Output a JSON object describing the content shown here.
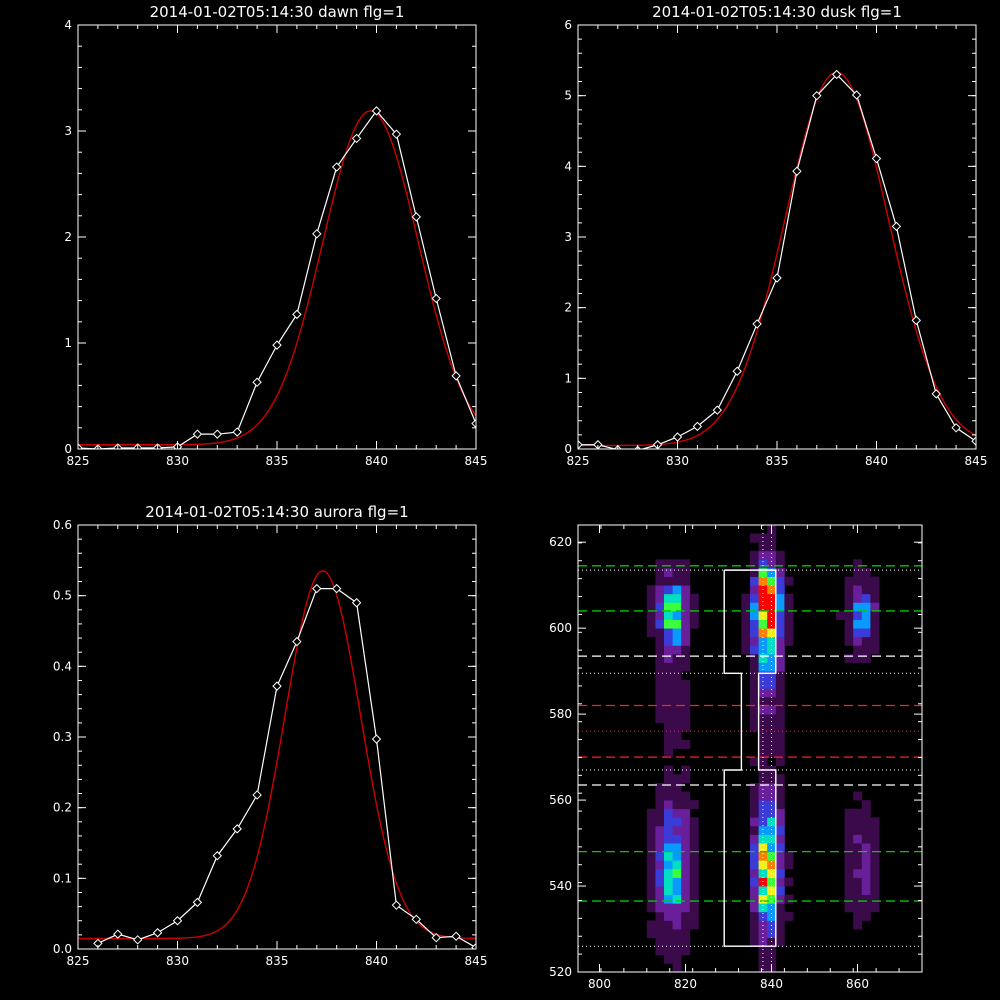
{
  "chart_data": [
    {
      "id": "dawn",
      "type": "line",
      "title": "2014-01-02T05:14:30 dawn flg=1",
      "xlim": [
        825,
        845
      ],
      "ylim": [
        0,
        4
      ],
      "xticks": [
        "825",
        "830",
        "835",
        "840",
        "845"
      ],
      "yticks": [
        "0",
        "1",
        "2",
        "3",
        "4"
      ],
      "series": [
        {
          "color": "#ffffff",
          "markers": "diamond",
          "x": [
            825,
            826,
            827,
            828,
            829,
            830,
            831,
            832,
            833,
            834,
            835,
            836,
            837,
            838,
            839,
            840,
            841,
            842,
            843,
            844,
            845
          ],
          "y": [
            0.01,
            0.0,
            0.01,
            0.01,
            0.01,
            0.02,
            0.14,
            0.14,
            0.16,
            0.63,
            0.98,
            1.27,
            2.03,
            2.66,
            2.93,
            3.19,
            2.97,
            2.19,
            1.42,
            0.69,
            0.24
          ]
        },
        {
          "color": "#cc0000",
          "fit": "gaussian",
          "center": 839.7,
          "amplitude": 3.15,
          "sigma": 2.4,
          "offset": 0.04
        }
      ]
    },
    {
      "id": "dusk",
      "type": "line",
      "title": "2014-01-02T05:14:30 dusk flg=1",
      "xlim": [
        825,
        845
      ],
      "ylim": [
        0,
        6
      ],
      "xticks": [
        "825",
        "830",
        "835",
        "840",
        "845"
      ],
      "yticks": [
        "0",
        "1",
        "2",
        "3",
        "4",
        "5",
        "6"
      ],
      "series": [
        {
          "color": "#ffffff",
          "markers": "diamond",
          "x": [
            825,
            826,
            827,
            828,
            829,
            830,
            831,
            832,
            833,
            834,
            835,
            836,
            837,
            838,
            839,
            840,
            841,
            842,
            843,
            844,
            845
          ],
          "y": [
            0.06,
            0.06,
            -0.01,
            -0.02,
            0.06,
            0.17,
            0.32,
            0.55,
            1.1,
            1.77,
            2.42,
            3.93,
            5.0,
            5.3,
            5.01,
            4.11,
            3.15,
            1.82,
            0.78,
            0.3,
            0.11
          ]
        },
        {
          "color": "#cc0000",
          "fit": "gaussian",
          "center": 838.0,
          "amplitude": 5.28,
          "sigma": 2.6,
          "offset": 0.05
        }
      ]
    },
    {
      "id": "aurora",
      "type": "line",
      "title": "2014-01-02T05:14:30 aurora flg=1",
      "xlim": [
        825,
        845
      ],
      "ylim": [
        0,
        0.6
      ],
      "xticks": [
        "825",
        "830",
        "835",
        "840",
        "845"
      ],
      "yticks": [
        "0.0",
        "0.1",
        "0.2",
        "0.3",
        "0.4",
        "0.5",
        "0.6"
      ],
      "series": [
        {
          "color": "#ffffff",
          "markers": "diamond",
          "x": [
            826,
            827,
            828,
            829,
            830,
            831,
            832,
            833,
            834,
            835,
            836,
            837,
            838,
            839,
            840,
            841,
            842,
            843,
            844,
            845
          ],
          "y": [
            0.008,
            0.021,
            0.013,
            0.023,
            0.04,
            0.066,
            0.132,
            0.17,
            0.218,
            0.372,
            0.435,
            0.51,
            0.51,
            0.49,
            0.297,
            0.062,
            0.042,
            0.016,
            0.018,
            0.002
          ]
        },
        {
          "color": "#cc0000",
          "fit": "gaussian",
          "center": 837.3,
          "amplitude": 0.52,
          "sigma": 1.9,
          "offset": 0.015
        }
      ]
    },
    {
      "id": "image",
      "type": "heatmap",
      "xlim": [
        795,
        875
      ],
      "ylim": [
        520,
        624
      ],
      "xticks": [
        "800",
        "820",
        "840",
        "860"
      ],
      "yticks": [
        "520",
        "540",
        "560",
        "580",
        "600",
        "620"
      ],
      "colormap": [
        "#000000",
        "#3a0a4a",
        "#6a1f9a",
        "#3b3bd8",
        "#0a9aff",
        "#00e0c0",
        "#3cff3c",
        "#f0f020",
        "#ff8000",
        "#ff0000"
      ],
      "blobs": [
        {
          "x": 817,
          "y": 603,
          "sx": 2.5,
          "sy": 6.5,
          "amp": 0.62
        },
        {
          "x": 839,
          "y": 603,
          "sx": 2.2,
          "sy": 8.5,
          "amp": 0.98
        },
        {
          "x": 839,
          "y": 608,
          "sx": 1.5,
          "sy": 2.5,
          "amp": 0.5
        },
        {
          "x": 861,
          "y": 603,
          "sx": 2.2,
          "sy": 5.5,
          "amp": 0.45
        },
        {
          "x": 817,
          "y": 544,
          "sx": 2.8,
          "sy": 11,
          "amp": 0.55
        },
        {
          "x": 839,
          "y": 545,
          "sx": 2.2,
          "sy": 11,
          "amp": 0.78
        },
        {
          "x": 839,
          "y": 540,
          "sx": 1.5,
          "sy": 2.5,
          "amp": 0.25
        },
        {
          "x": 861,
          "y": 545,
          "sx": 2.5,
          "sy": 9,
          "amp": 0.22
        },
        {
          "x": 817,
          "y": 582,
          "sx": 2.5,
          "sy": 6,
          "amp": 0.15
        },
        {
          "x": 839,
          "y": 582,
          "sx": 2.5,
          "sy": 6,
          "amp": 0.18
        }
      ],
      "hlines": [
        {
          "y": 614.5,
          "color": "#00cc00",
          "style": "dashed"
        },
        {
          "y": 604,
          "color": "#00cc00",
          "style": "dashed"
        },
        {
          "y": 593.5,
          "color": "#ffffff",
          "style": "dashed"
        },
        {
          "y": 582,
          "color": "#ff2020",
          "style": "dashed"
        },
        {
          "y": 570,
          "color": "#ff2020",
          "style": "dashed"
        },
        {
          "y": 563.5,
          "color": "#ffffff",
          "style": "dashed"
        },
        {
          "y": 548,
          "color": "#00cc00",
          "style": "dashed"
        },
        {
          "y": 536.5,
          "color": "#00cc00",
          "style": "dashed"
        },
        {
          "y": 613.5,
          "color": "#ffffff",
          "style": "dotted"
        },
        {
          "y": 589.5,
          "color": "#ffffff",
          "style": "dotted"
        },
        {
          "y": 576,
          "color": "#ff2020",
          "style": "dotted"
        },
        {
          "y": 567,
          "color": "#ffffff",
          "style": "dotted"
        },
        {
          "y": 526,
          "color": "#ffffff",
          "style": "dotted"
        }
      ],
      "vlines": [
        {
          "x": 838,
          "color": "#ffffff",
          "style": "dotted"
        },
        {
          "x": 840,
          "color": "#ffffff",
          "style": "dotted"
        }
      ],
      "outline": {
        "color": "#ffffff",
        "points": [
          [
            829,
            613.5
          ],
          [
            841,
            613.5
          ],
          [
            841,
            589.5
          ],
          [
            837,
            589.5
          ],
          [
            837,
            567
          ],
          [
            841,
            567
          ],
          [
            841,
            526
          ],
          [
            829,
            526
          ],
          [
            829,
            567
          ],
          [
            833,
            567
          ],
          [
            833,
            589.5
          ],
          [
            829,
            589.5
          ],
          [
            829,
            613.5
          ]
        ]
      }
    }
  ]
}
